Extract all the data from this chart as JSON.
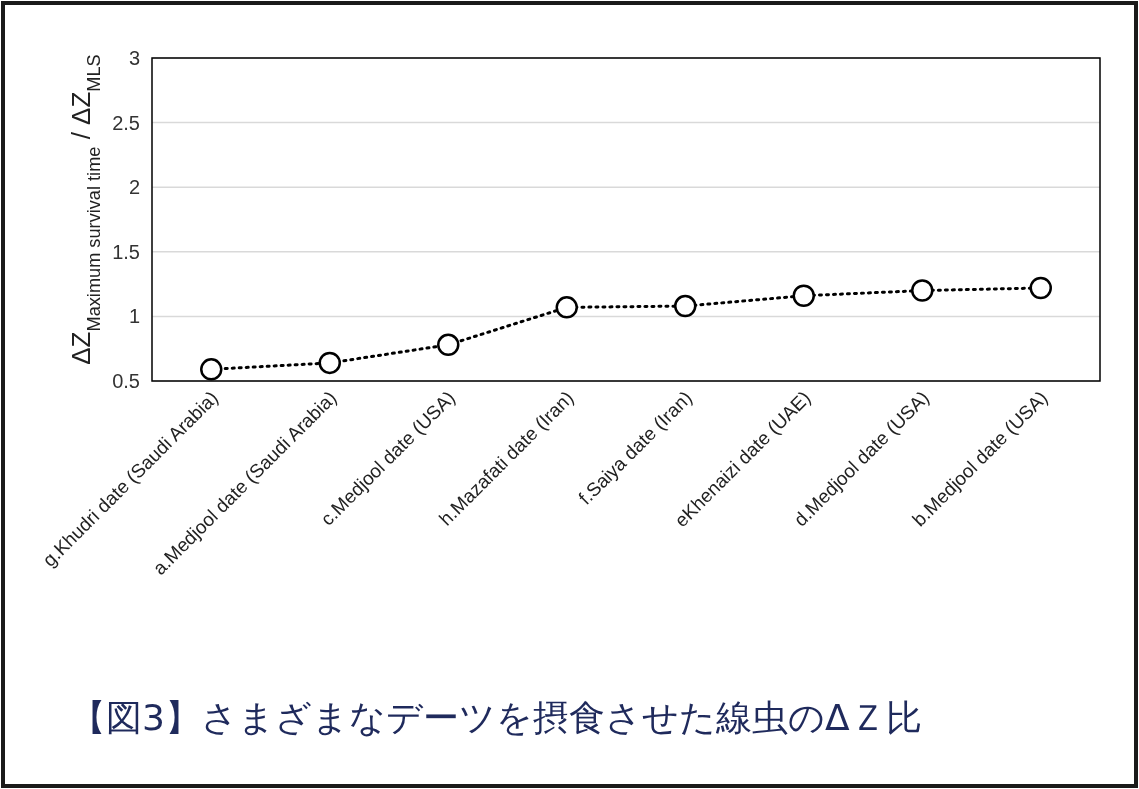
{
  "chart_data": {
    "type": "line",
    "title": "【図3】さまざまなデーツを摂食させた線虫のΔＺ比",
    "ylabel": "ΔZ$_{Maximum survival time}$ / ΔZ$_{MLS}$",
    "categories": [
      "g.Khudri date (Saudi Arabia)",
      "a.Medjool date (Saudi Arabia)",
      "c.Medjool date (USA)",
      "h.Mazafati date (Iran)",
      "f.Saiya date (Iran)",
      "eKhenaizi date (UAE)",
      "d.Medjool date (USA)",
      "b.Medjool date (USA)"
    ],
    "series": [
      {
        "color": "#000000",
        "values": [
          0.59,
          0.64,
          0.78,
          1.07,
          1.08,
          1.16,
          1.2,
          1.22
        ]
      }
    ],
    "ylim": [
      0.5,
      3
    ],
    "yticks": [
      0.5,
      1,
      1.5,
      2,
      2.5,
      3
    ],
    "grid": "y",
    "marker": "circle",
    "line_style": "dotted"
  }
}
